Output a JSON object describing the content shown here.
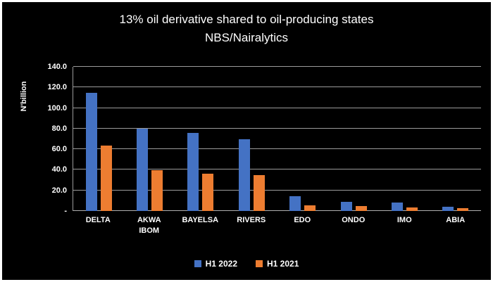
{
  "colors": {
    "background": "#000000",
    "frame_border": "#ffffff",
    "text": "#ffffff",
    "gridline": "#9b9b9b",
    "series_blue": "#4472C4",
    "series_orange": "#ED7D31"
  },
  "chart_data": {
    "type": "bar",
    "title": "13% oil derivative shared to oil-producing states",
    "subtitle": "NBS/Nairalytics",
    "xlabel": "",
    "ylabel": "N'billion",
    "ylim": [
      0,
      140
    ],
    "ytick_step": 20,
    "ytick_labels": [
      "-",
      "20.0",
      "40.0",
      "60.0",
      "80.0",
      "100.0",
      "120.0",
      "140.0"
    ],
    "grid": true,
    "legend_position": "bottom",
    "categories": [
      "DELTA",
      "AKWA IBOM",
      "BAYELSA",
      "RIVERS",
      "EDO",
      "ONDO",
      "IMO",
      "ABIA"
    ],
    "category_display_labels": [
      "DELTA",
      "AKWA\nIBOM",
      "BAYELSA",
      "RIVERS",
      "EDO",
      "ONDO",
      "IMO",
      "ABIA"
    ],
    "series": [
      {
        "name": "H1 2022",
        "color": "#4472C4",
        "values": [
          114.5,
          80.0,
          76.0,
          70.0,
          14.5,
          9.0,
          8.0,
          4.0
        ]
      },
      {
        "name": "H1 2021",
        "color": "#ED7D31",
        "values": [
          63.5,
          39.5,
          36.0,
          35.0,
          5.5,
          5.0,
          3.5,
          2.5
        ]
      }
    ]
  }
}
